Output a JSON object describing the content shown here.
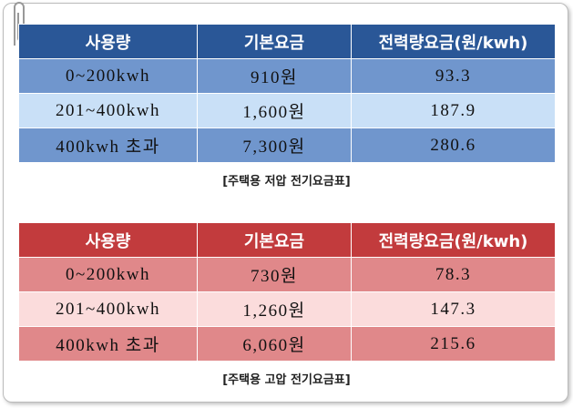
{
  "tables": [
    {
      "header": [
        "사용량",
        "기본요금",
        "전력량요금(원/kwh)"
      ],
      "rows": [
        [
          "0~200kwh",
          "910원",
          "93.3"
        ],
        [
          "201~400kwh",
          "1,600원",
          "187.9"
        ],
        [
          "400kwh 초과",
          "7,300원",
          "280.6"
        ]
      ],
      "caption": "[주택용 저압 전기요금표]"
    },
    {
      "header": [
        "사용량",
        "기본요금",
        "전력량요금(원/kwh)"
      ],
      "rows": [
        [
          "0~200kwh",
          "730원",
          "78.3"
        ],
        [
          "201~400kwh",
          "1,260원",
          "147.3"
        ],
        [
          "400kwh 초과",
          "6,060원",
          "215.6"
        ]
      ],
      "caption": "[주택용 고압 전기요금표]"
    }
  ]
}
